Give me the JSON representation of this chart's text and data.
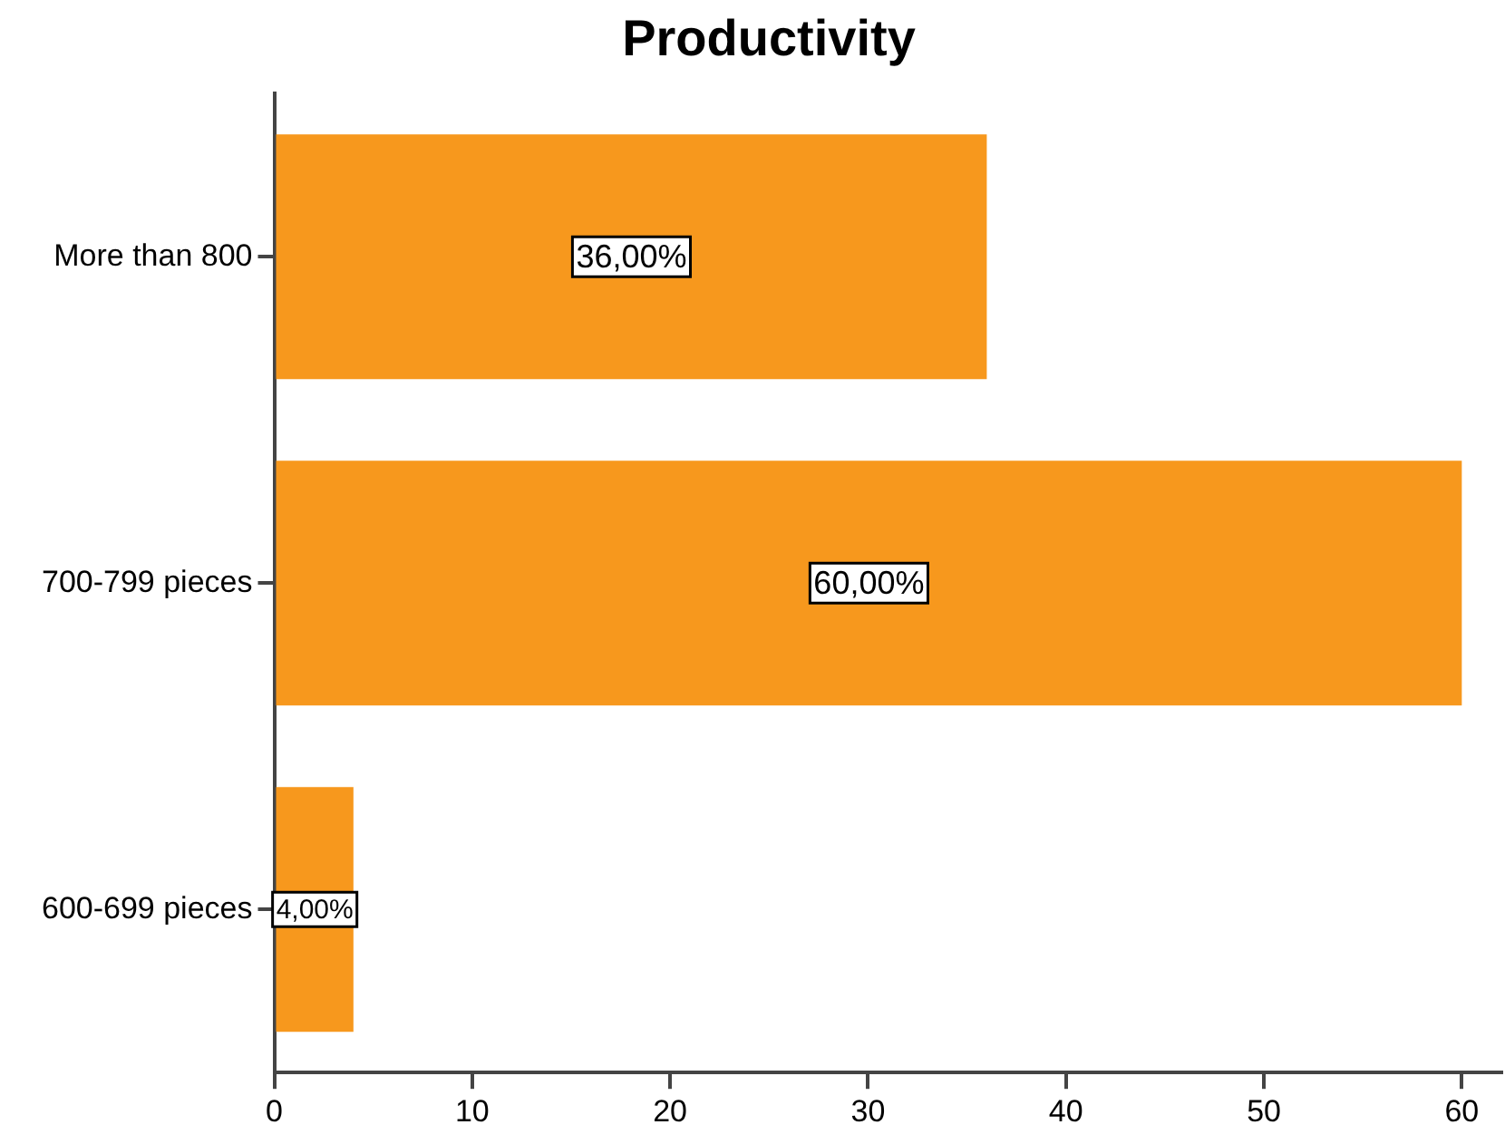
{
  "chart_data": {
    "type": "bar",
    "orientation": "horizontal",
    "title": "Productivity",
    "categories": [
      "More than 800",
      "700-799 pieces",
      "600-699 pieces"
    ],
    "values": [
      36,
      60,
      4
    ],
    "color": "#f7981d",
    "value_labels": [
      "36,00%",
      "60,00%",
      "4,00%"
    ],
    "xlim": [
      0,
      62
    ],
    "xticks": [
      0,
      10,
      20,
      30,
      40,
      50,
      60
    ],
    "grid": false,
    "legend": false
  }
}
